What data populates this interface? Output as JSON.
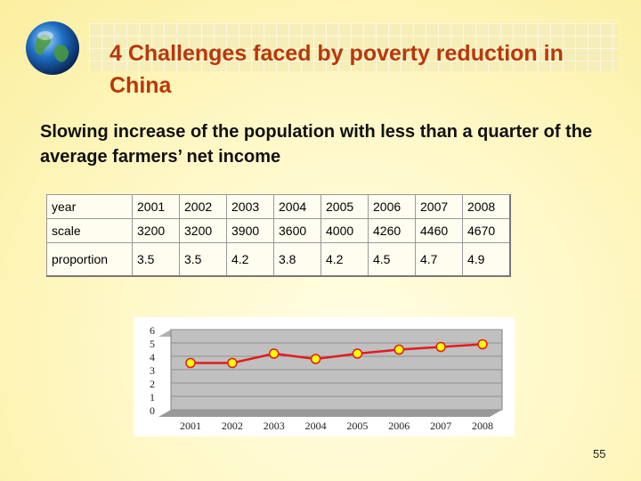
{
  "slide": {
    "title": "4 Challenges faced by poverty reduction in China",
    "subtitle": "Slowing increase of the population with less than a quarter of the average farmers’ net income",
    "page_number": "55"
  },
  "table": {
    "rows": [
      {
        "label": "year",
        "values": [
          "2001",
          "2002",
          "2003",
          "2004",
          "2005",
          "2006",
          "2007",
          "2008"
        ]
      },
      {
        "label": "scale",
        "values": [
          "3200",
          "3200",
          "3900",
          "3600",
          "4000",
          "4260",
          "4460",
          "4670"
        ]
      },
      {
        "label": "proportion",
        "values": [
          "3.5",
          "3.5",
          "4.2",
          "3.8",
          "4.2",
          "4.5",
          "4.7",
          "4.9"
        ]
      }
    ]
  },
  "chart_data": {
    "type": "line",
    "categories": [
      "2001",
      "2002",
      "2003",
      "2004",
      "2005",
      "2006",
      "2007",
      "2008"
    ],
    "series": [
      {
        "values": [
          3.5,
          3.5,
          4.2,
          3.8,
          4.2,
          4.5,
          4.7,
          4.9
        ],
        "color": "#e31a1c"
      }
    ],
    "y_ticks": [
      "0",
      "1",
      "2",
      "3",
      "4",
      "5",
      "6"
    ],
    "ylim": [
      0,
      6
    ],
    "grid": true,
    "plot_background": "#c0c0c0",
    "marker_color": "#ffff00"
  }
}
